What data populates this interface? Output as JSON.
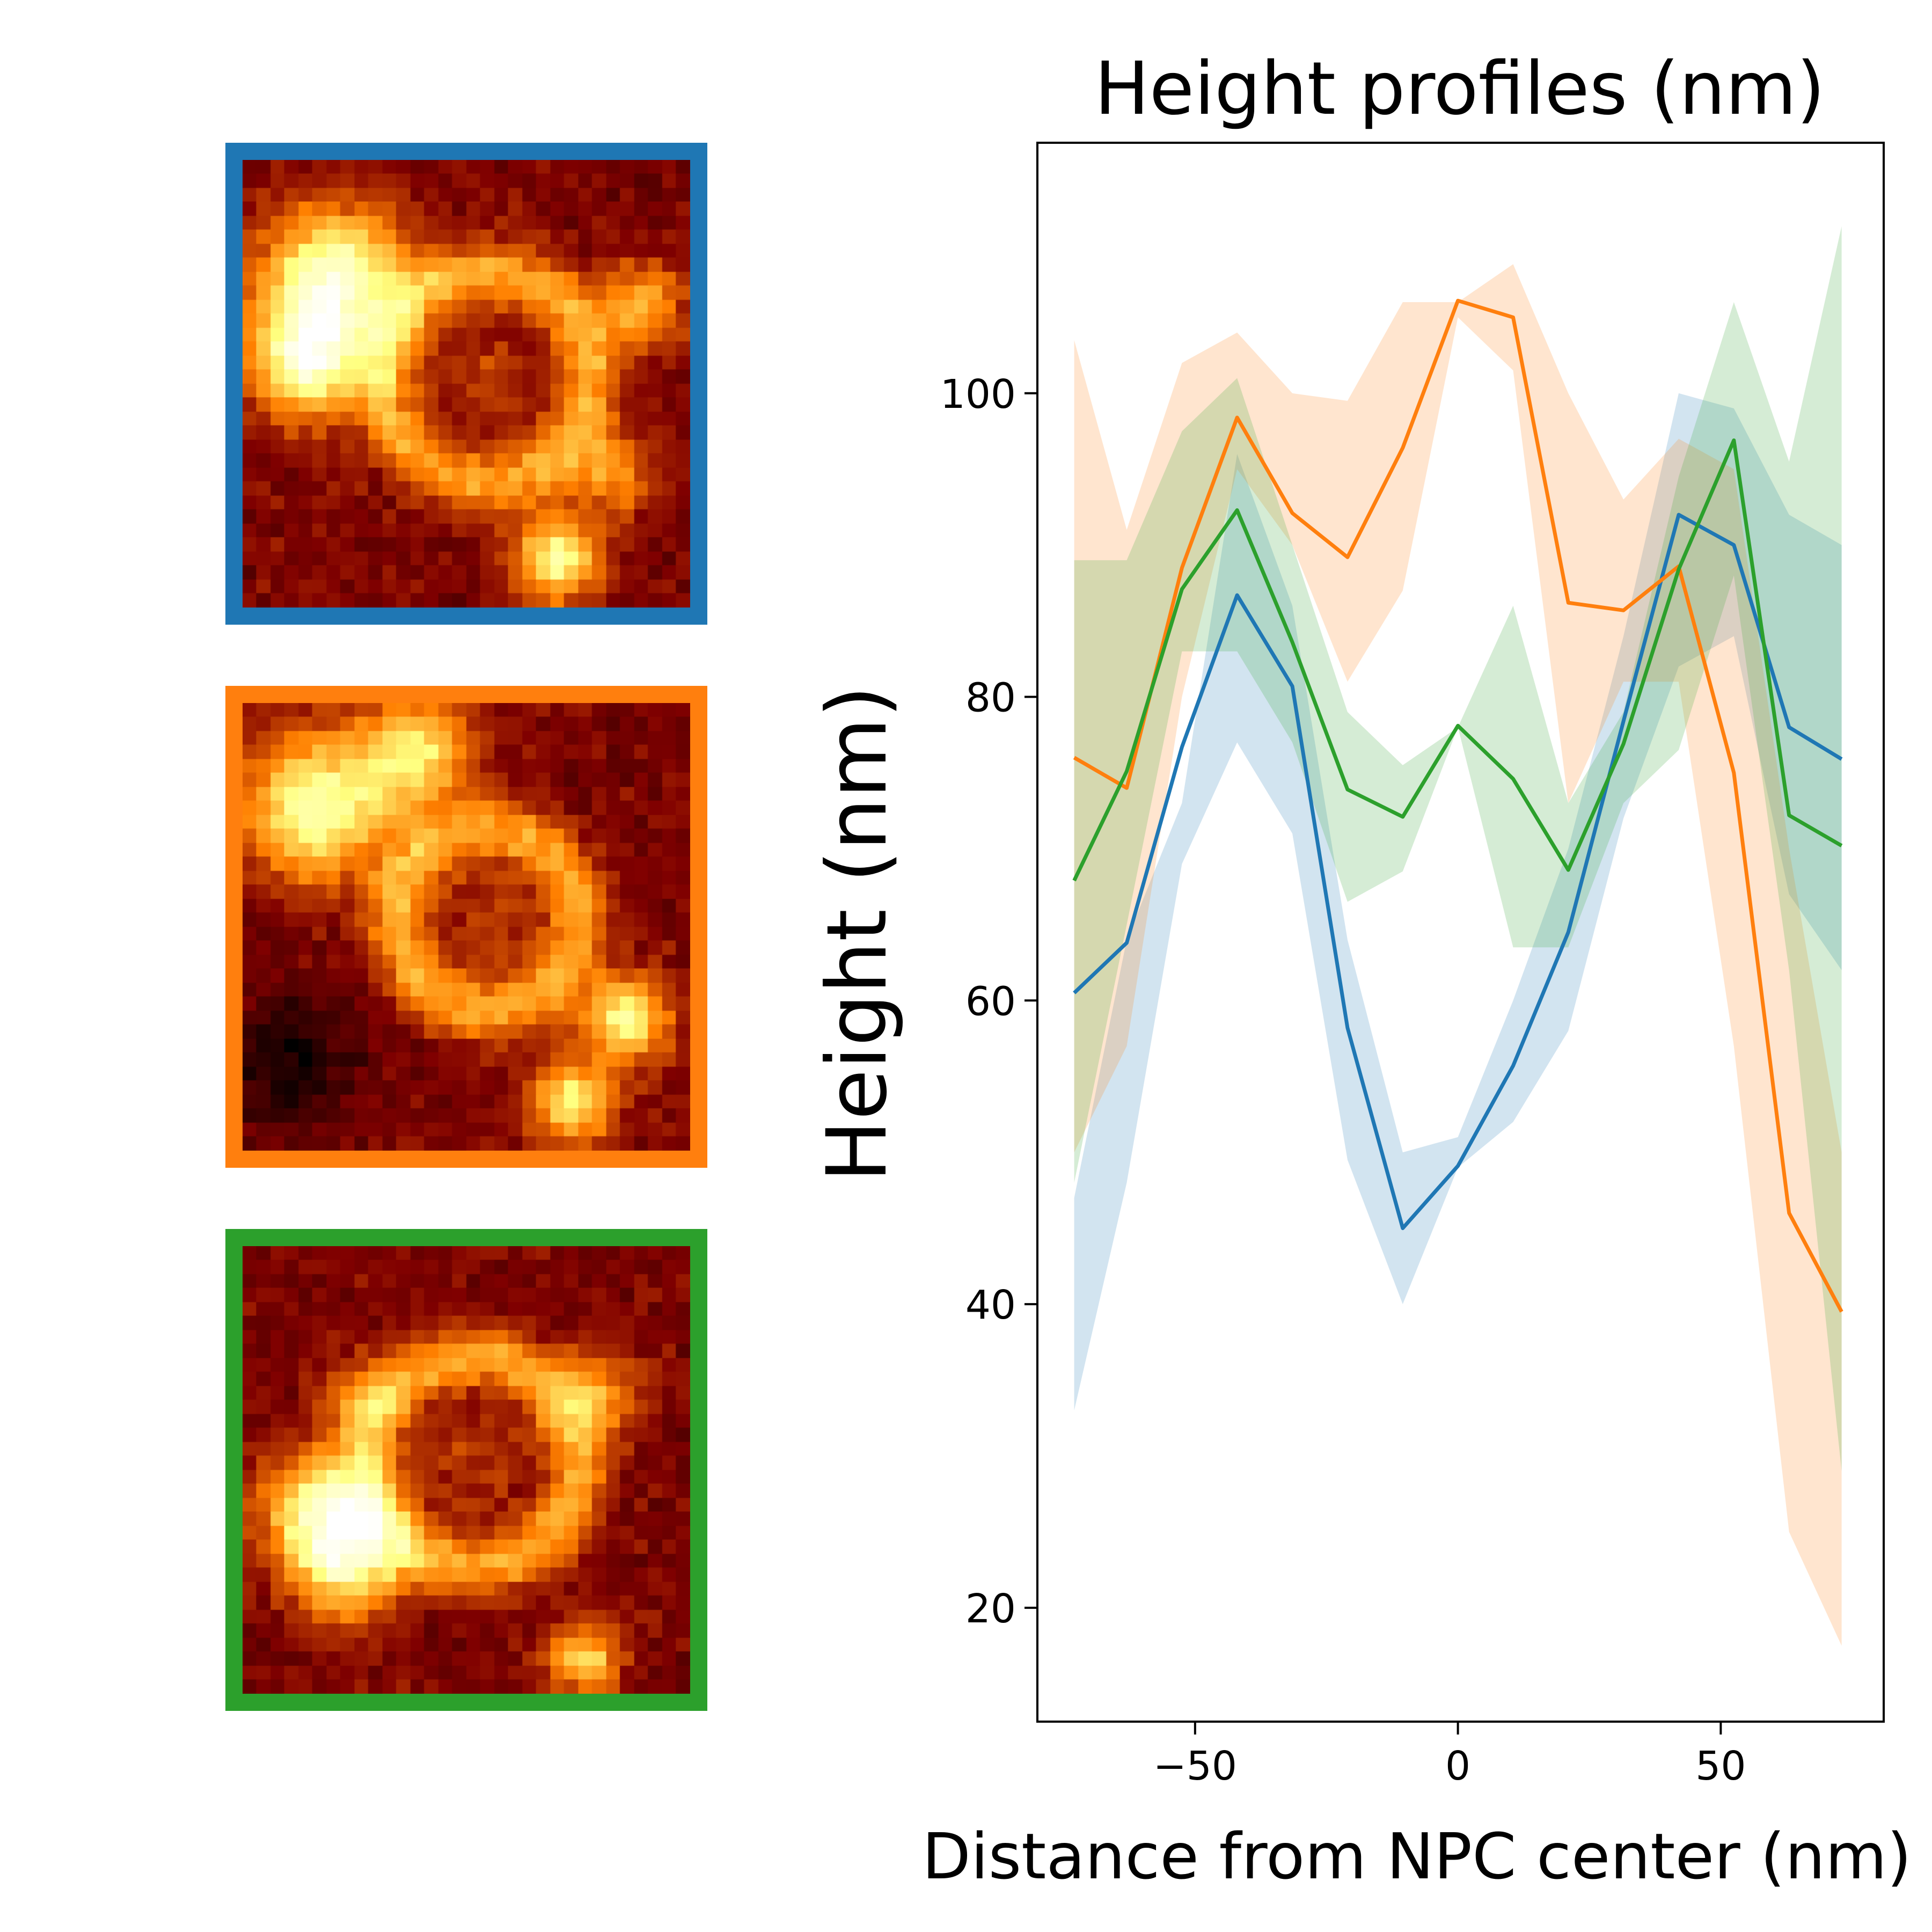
{
  "colors": {
    "blue": "#1f77b4",
    "orange": "#ff7f0e",
    "green": "#2ca02c",
    "colormap": "afmhot"
  },
  "thumbnails": [
    {
      "name": "blue-thumbnail",
      "border_color": "#1f77b4",
      "pattern": "ring-with-spokes"
    },
    {
      "name": "orange-thumbnail",
      "border_color": "#ff7f0e",
      "pattern": "ring-offset"
    },
    {
      "name": "green-thumbnail",
      "border_color": "#2ca02c",
      "pattern": "ring-broad"
    }
  ],
  "chart_data": {
    "type": "line",
    "title": "Height profiles (nm)",
    "xlabel": "Distance from NPC center (nm)",
    "ylabel": "Height (nm)",
    "xlim": [
      -80,
      81
    ],
    "ylim": [
      12.5,
      116.5
    ],
    "xticks": [
      -50,
      0,
      50
    ],
    "xtick_labels": [
      "−50",
      "0",
      "50"
    ],
    "yticks": [
      20,
      40,
      60,
      80,
      100
    ],
    "ytick_labels": [
      "20",
      "40",
      "60",
      "80",
      "100"
    ],
    "grid": false,
    "legend": false,
    "x": [
      -73,
      -63,
      -52.5,
      -42,
      -31.5,
      -21,
      -10.5,
      0,
      10.5,
      21,
      31.5,
      42,
      52.5,
      63,
      73
    ],
    "series": [
      {
        "color": "#1f77b4",
        "values": [
          60.5,
          63.8,
          76.7,
          86.7,
          80.7,
          58.2,
          45,
          49.1,
          55.7,
          64.5,
          78.4,
          92,
          90,
          78,
          75.9
        ],
        "upper": [
          47,
          64,
          73,
          96,
          86,
          64,
          50,
          51,
          60,
          70,
          84,
          100,
          99,
          92,
          90
        ],
        "lower": [
          33,
          48,
          69,
          77,
          71,
          49.5,
          40,
          49,
          52,
          58,
          72,
          82,
          84,
          67,
          62
        ]
      },
      {
        "color": "#ff7f0e",
        "values": [
          76,
          74,
          88.5,
          98.4,
          92.1,
          89.2,
          96.4,
          106.1,
          105,
          86.2,
          85.7,
          88.6,
          75,
          46,
          39.5
        ],
        "upper": [
          103.5,
          91,
          102,
          104,
          100,
          99.5,
          106,
          106,
          108.5,
          100,
          93,
          97,
          95,
          70,
          50
        ],
        "lower": [
          50,
          57,
          80,
          95,
          90,
          81,
          87,
          105,
          101.5,
          73,
          81,
          81,
          57,
          25,
          17.5
        ]
      },
      {
        "color": "#2ca02c",
        "values": [
          67.9,
          75.1,
          87.1,
          92.3,
          83.6,
          73.9,
          72.1,
          78.1,
          74.6,
          68.6,
          76.9,
          88.4,
          96.9,
          72.2,
          70.2
        ],
        "upper": [
          89,
          89,
          97.5,
          101,
          90,
          79,
          75.5,
          78,
          86,
          73,
          79,
          94.5,
          106,
          95.5,
          111
        ],
        "lower": [
          48,
          65,
          83,
          83,
          77,
          66.5,
          68.5,
          78,
          63.5,
          63.5,
          73,
          76.5,
          88,
          62,
          29
        ]
      }
    ]
  }
}
